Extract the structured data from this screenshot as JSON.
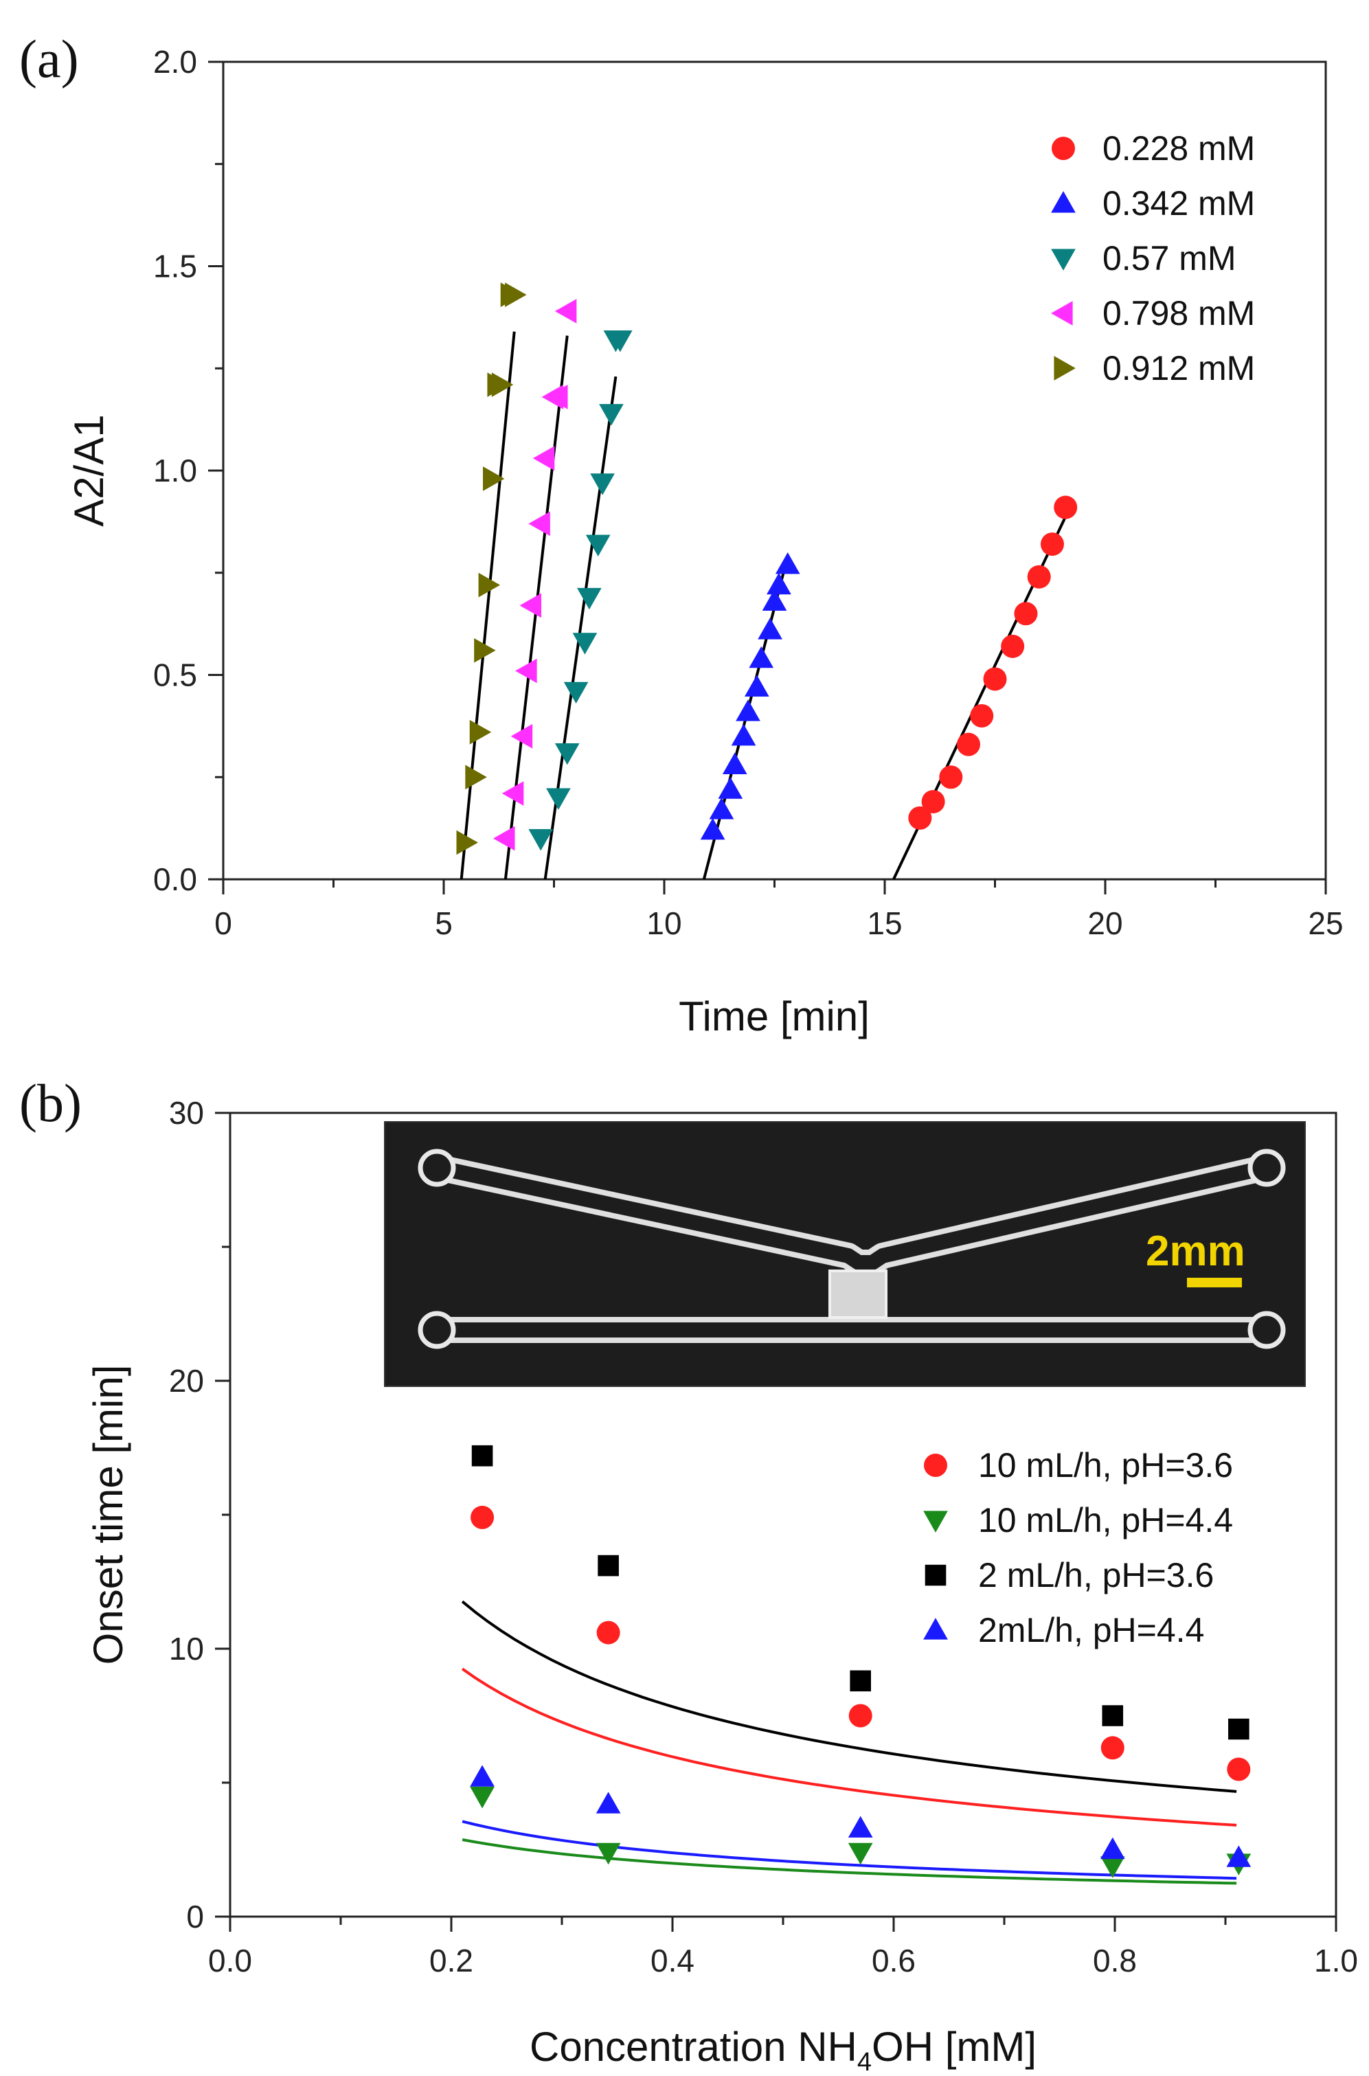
{
  "chart_data": [
    {
      "panel_label": "(a)",
      "type": "scatter",
      "xlabel": "Time [min]",
      "ylabel": "A2/A1",
      "xlim": [
        0,
        25
      ],
      "ylim": [
        0,
        2.0
      ],
      "xticks": [
        "0",
        "5",
        "10",
        "15",
        "20",
        "25"
      ],
      "yticks": [
        "0.0",
        "0.5",
        "1.0",
        "1.5",
        "2.0"
      ],
      "legend_position": "top-right",
      "series": [
        {
          "name": "0.228 mM",
          "marker": "circle",
          "color": "#ff2020",
          "x": [
            15.8,
            16.1,
            16.5,
            16.9,
            17.2,
            17.5,
            17.9,
            18.2,
            18.5,
            18.8,
            19.1
          ],
          "y": [
            0.15,
            0.19,
            0.25,
            0.33,
            0.4,
            0.49,
            0.57,
            0.65,
            0.74,
            0.82,
            0.91
          ],
          "fit": [
            [
              15.2,
              0.0
            ],
            [
              19.2,
              0.91
            ]
          ]
        },
        {
          "name": "0.342 mM",
          "marker": "triangle-up",
          "color": "#1a1aff",
          "x": [
            11.1,
            11.3,
            11.5,
            11.6,
            11.8,
            11.9,
            12.1,
            12.2,
            12.4,
            12.5,
            12.6,
            12.8
          ],
          "y": [
            0.12,
            0.17,
            0.22,
            0.28,
            0.35,
            0.41,
            0.47,
            0.54,
            0.61,
            0.68,
            0.72,
            0.77
          ],
          "fit": [
            [
              10.9,
              0.0
            ],
            [
              12.8,
              0.79
            ]
          ]
        },
        {
          "name": "0.57 mM",
          "marker": "triangle-down",
          "color": "#0a8080",
          "x": [
            7.2,
            7.6,
            7.8,
            8.0,
            8.2,
            8.3,
            8.5,
            8.6,
            8.8,
            8.9,
            9.0
          ],
          "y": [
            0.1,
            0.2,
            0.31,
            0.46,
            0.58,
            0.69,
            0.82,
            0.97,
            1.14,
            1.32,
            1.32
          ],
          "fit": [
            [
              7.3,
              0.0
            ],
            [
              8.9,
              1.23
            ]
          ]
        },
        {
          "name": "0.798 mM",
          "marker": "triangle-left",
          "color": "#ff30ff",
          "x": [
            6.4,
            6.6,
            6.8,
            6.9,
            7.0,
            7.2,
            7.3,
            7.5,
            7.6,
            7.8
          ],
          "y": [
            0.1,
            0.21,
            0.35,
            0.51,
            0.67,
            0.87,
            1.03,
            1.18,
            1.18,
            1.39
          ],
          "fit": [
            [
              6.4,
              0.0
            ],
            [
              7.8,
              1.33
            ]
          ]
        },
        {
          "name": "0.912 mM",
          "marker": "triangle-right",
          "color": "#6b6b00",
          "x": [
            5.5,
            5.7,
            5.8,
            5.9,
            6.0,
            6.1,
            6.2,
            6.3,
            6.5,
            6.6
          ],
          "y": [
            0.09,
            0.25,
            0.36,
            0.56,
            0.72,
            0.98,
            1.21,
            1.21,
            1.43,
            1.43
          ],
          "fit": [
            [
              5.4,
              0.0
            ],
            [
              6.6,
              1.34
            ]
          ]
        }
      ]
    },
    {
      "panel_label": "(b)",
      "type": "scatter",
      "xlabel_main": "Concentration NH",
      "xlabel_sub": "4",
      "xlabel_tail": "OH [mM]",
      "ylabel": "Onset time [min]",
      "xlim": [
        0,
        1.0
      ],
      "ylim": [
        0,
        30
      ],
      "xticks": [
        "0.0",
        "0.2",
        "0.4",
        "0.6",
        "0.8",
        "1.0"
      ],
      "yticks": [
        "0",
        "10",
        "20",
        "30"
      ],
      "legend_position": "right",
      "inset_scale_label": "2mm",
      "series": [
        {
          "name": "10 mL/h, pH=3.6",
          "marker": "circle",
          "color": "#ff2020",
          "x": [
            0.228,
            0.342,
            0.57,
            0.798,
            0.912
          ],
          "y": [
            14.9,
            10.6,
            7.5,
            6.3,
            5.5
          ],
          "fit_a": 3.2,
          "fit_b": -0.68
        },
        {
          "name": "10 mL/h, pH=4.4",
          "marker": "triangle-down",
          "color": "#1a8a1a",
          "x": [
            0.228,
            0.342,
            0.57,
            0.798,
            0.912
          ],
          "y": [
            4.5,
            2.4,
            2.4,
            1.9,
            2.0
          ],
          "fit_a": 1.18,
          "fit_b": -0.57
        },
        {
          "name": "2 mL/h, pH=3.6",
          "marker": "square",
          "color": "#000000",
          "x": [
            0.228,
            0.342,
            0.57,
            0.798,
            0.912
          ],
          "y": [
            17.2,
            13.1,
            8.8,
            7.5,
            7.0
          ],
          "fit_a": 4.4,
          "fit_b": -0.63
        },
        {
          "name": "2mL/h, pH=4.4",
          "marker": "triangle-up",
          "color": "#1a1aff",
          "x": [
            0.228,
            0.342,
            0.57,
            0.798,
            0.912
          ],
          "y": [
            5.2,
            4.2,
            3.3,
            2.5,
            2.2
          ],
          "fit_a": 1.35,
          "fit_b": -0.62
        }
      ]
    }
  ]
}
